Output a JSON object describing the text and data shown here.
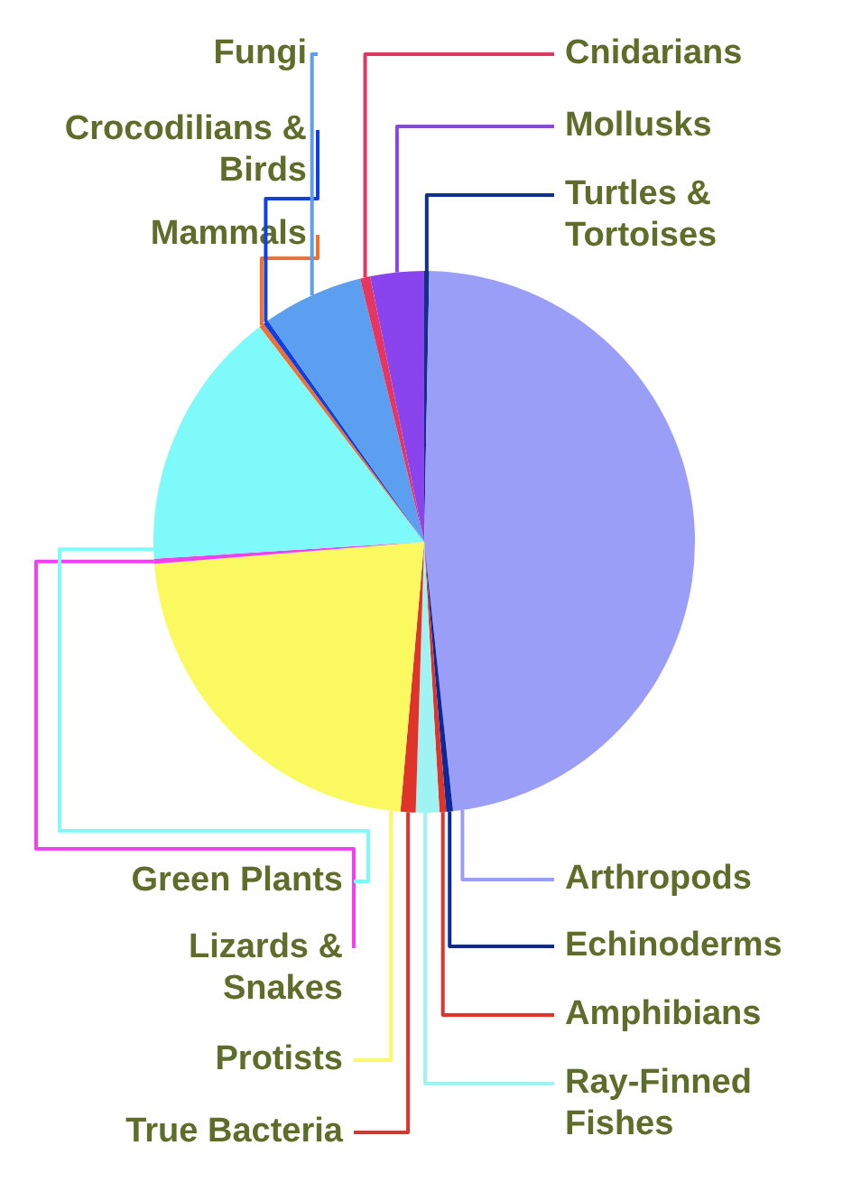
{
  "chart_data": {
    "type": "pie",
    "categories": [
      "Turtles & Tortoises",
      "Arthropods",
      "Echinoderms",
      "Amphibians",
      "Ray-Finned Fishes",
      "True Bacteria",
      "Protists",
      "Lizards & Snakes",
      "Green Plants",
      "Mammals",
      "Crocodilians & Birds",
      "Fungi",
      "Cnidarians",
      "Mollusks"
    ],
    "values": [
      0.3,
      48.0,
      0.4,
      0.4,
      1.4,
      0.9,
      22.3,
      0.3,
      15.6,
      0.3,
      0.3,
      6.0,
      0.6,
      3.2
    ],
    "colors": [
      "#10308a",
      "#9b9ef7",
      "#0a2a9a",
      "#e0342a",
      "#9ff3f3",
      "#e0342a",
      "#fafa60",
      "#f040f0",
      "#7ffafa",
      "#f07030",
      "#1040e0",
      "#5c9ef0",
      "#e63560",
      "#8a44ee"
    ]
  }
}
